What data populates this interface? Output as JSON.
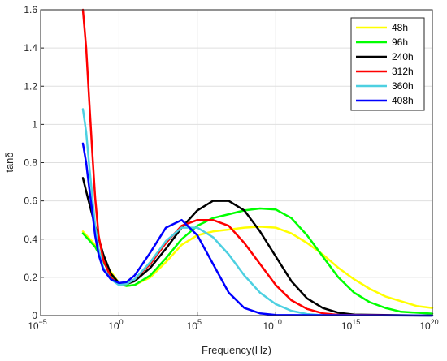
{
  "chart_data": {
    "type": "line",
    "title": "",
    "xlabel": "Frequency(Hz)",
    "ylabel": "tanδ",
    "x_scale": "log",
    "xlim": [
      1e-05,
      1e+20
    ],
    "ylim": [
      0,
      1.6
    ],
    "grid": true,
    "legend_position": "top-right",
    "x_ticks": [
      {
        "value": 1e-05,
        "base": "10",
        "exp": "−5"
      },
      {
        "value": 1,
        "base": "10",
        "exp": "0"
      },
      {
        "value": 100000,
        "base": "10",
        "exp": "5"
      },
      {
        "value": 10000000000.0,
        "base": "10",
        "exp": "10"
      },
      {
        "value": 1000000000000000.0,
        "base": "10",
        "exp": "15"
      },
      {
        "value": 1e+20,
        "base": "10",
        "exp": "20"
      }
    ],
    "y_ticks": [
      {
        "value": 0,
        "label": "0"
      },
      {
        "value": 0.2,
        "label": "0.2"
      },
      {
        "value": 0.4,
        "label": "0.4"
      },
      {
        "value": 0.6,
        "label": "0.6"
      },
      {
        "value": 0.8,
        "label": "0.8"
      },
      {
        "value": 1,
        "label": "1"
      },
      {
        "value": 1.2,
        "label": "1.2"
      },
      {
        "value": 1.4,
        "label": "1.4"
      },
      {
        "value": 1.6,
        "label": "1.6"
      }
    ],
    "series": [
      {
        "name": "48h",
        "color": "#ffff00",
        "x": [
          0.005,
          0.03,
          0.1,
          0.3,
          1,
          3,
          10,
          100,
          1000,
          10000,
          100000,
          1000000,
          10000000,
          100000000,
          1000000000,
          10000000000,
          100000000000,
          1000000000000,
          10000000000000,
          100000000000000,
          1000000000000000,
          10000000000000000,
          100000000000000000,
          1000000000000000000,
          10000000000000000000,
          1e+20
        ],
        "y": [
          0.44,
          0.37,
          0.29,
          0.23,
          0.17,
          0.155,
          0.16,
          0.2,
          0.28,
          0.37,
          0.42,
          0.44,
          0.45,
          0.46,
          0.465,
          0.46,
          0.43,
          0.38,
          0.32,
          0.25,
          0.19,
          0.14,
          0.1,
          0.075,
          0.05,
          0.04
        ]
      },
      {
        "name": "96h",
        "color": "#00ff00",
        "x": [
          0.005,
          0.03,
          0.1,
          0.3,
          1,
          3,
          10,
          100,
          1000,
          10000,
          100000,
          1000000,
          10000000,
          100000000,
          1000000000,
          10000000000,
          100000000000,
          1000000000000,
          10000000000000,
          100000000000000,
          1000000000000000,
          10000000000000000,
          100000000000000000,
          1000000000000000000,
          1e+20
        ],
        "y": [
          0.43,
          0.36,
          0.28,
          0.22,
          0.165,
          0.155,
          0.16,
          0.21,
          0.3,
          0.4,
          0.47,
          0.51,
          0.53,
          0.55,
          0.56,
          0.555,
          0.51,
          0.42,
          0.31,
          0.2,
          0.12,
          0.07,
          0.04,
          0.02,
          0.01
        ]
      },
      {
        "name": "240h",
        "color": "#000000",
        "x": [
          0.005,
          0.01,
          0.03,
          0.1,
          0.3,
          1,
          3,
          10,
          100,
          1000,
          10000,
          100000,
          1000000,
          10000000,
          100000000,
          1000000000,
          10000000000,
          100000000000,
          1000000000000,
          10000000000000,
          100000000000000,
          1000000000000000,
          1e+20
        ],
        "y": [
          0.72,
          0.62,
          0.47,
          0.32,
          0.22,
          0.17,
          0.165,
          0.18,
          0.25,
          0.35,
          0.46,
          0.55,
          0.6,
          0.6,
          0.55,
          0.44,
          0.31,
          0.18,
          0.09,
          0.04,
          0.015,
          0.005,
          0.0
        ]
      },
      {
        "name": "312h",
        "color": "#ff0000",
        "x": [
          0.005,
          0.008,
          0.012,
          0.02,
          0.03,
          0.05,
          0.1,
          0.3,
          1,
          3,
          10,
          100,
          1000,
          10000,
          100000,
          1000000,
          10000000,
          100000000,
          1000000000,
          10000000000,
          100000000000,
          1000000000000,
          10000000000000,
          100000000000000,
          1e+20
        ],
        "y": [
          1.6,
          1.4,
          1.15,
          0.85,
          0.62,
          0.42,
          0.29,
          0.2,
          0.16,
          0.165,
          0.19,
          0.27,
          0.38,
          0.47,
          0.5,
          0.5,
          0.47,
          0.38,
          0.27,
          0.16,
          0.08,
          0.035,
          0.012,
          0.004,
          0.0
        ]
      },
      {
        "name": "360h",
        "color": "#4dd0e1",
        "x": [
          0.005,
          0.008,
          0.012,
          0.02,
          0.03,
          0.05,
          0.1,
          0.3,
          1,
          3,
          10,
          100,
          1000,
          10000,
          100000,
          1000000,
          10000000,
          100000000,
          1000000000,
          10000000000,
          100000000000,
          1000000000000,
          10000000000000,
          1e+20
        ],
        "y": [
          1.08,
          0.96,
          0.8,
          0.62,
          0.47,
          0.35,
          0.25,
          0.19,
          0.16,
          0.165,
          0.19,
          0.28,
          0.39,
          0.46,
          0.46,
          0.41,
          0.32,
          0.21,
          0.12,
          0.06,
          0.025,
          0.008,
          0.002,
          0.0
        ]
      },
      {
        "name": "408h",
        "color": "#0000ff",
        "x": [
          0.005,
          0.008,
          0.012,
          0.02,
          0.03,
          0.05,
          0.1,
          0.3,
          1,
          3,
          10,
          100,
          1000,
          10000,
          100000,
          1000000,
          10000000,
          100000000,
          1000000000,
          10000000000,
          1e+20
        ],
        "y": [
          0.9,
          0.8,
          0.68,
          0.54,
          0.42,
          0.32,
          0.24,
          0.19,
          0.17,
          0.175,
          0.21,
          0.33,
          0.46,
          0.5,
          0.42,
          0.27,
          0.12,
          0.04,
          0.012,
          0.003,
          0.0
        ]
      }
    ]
  }
}
